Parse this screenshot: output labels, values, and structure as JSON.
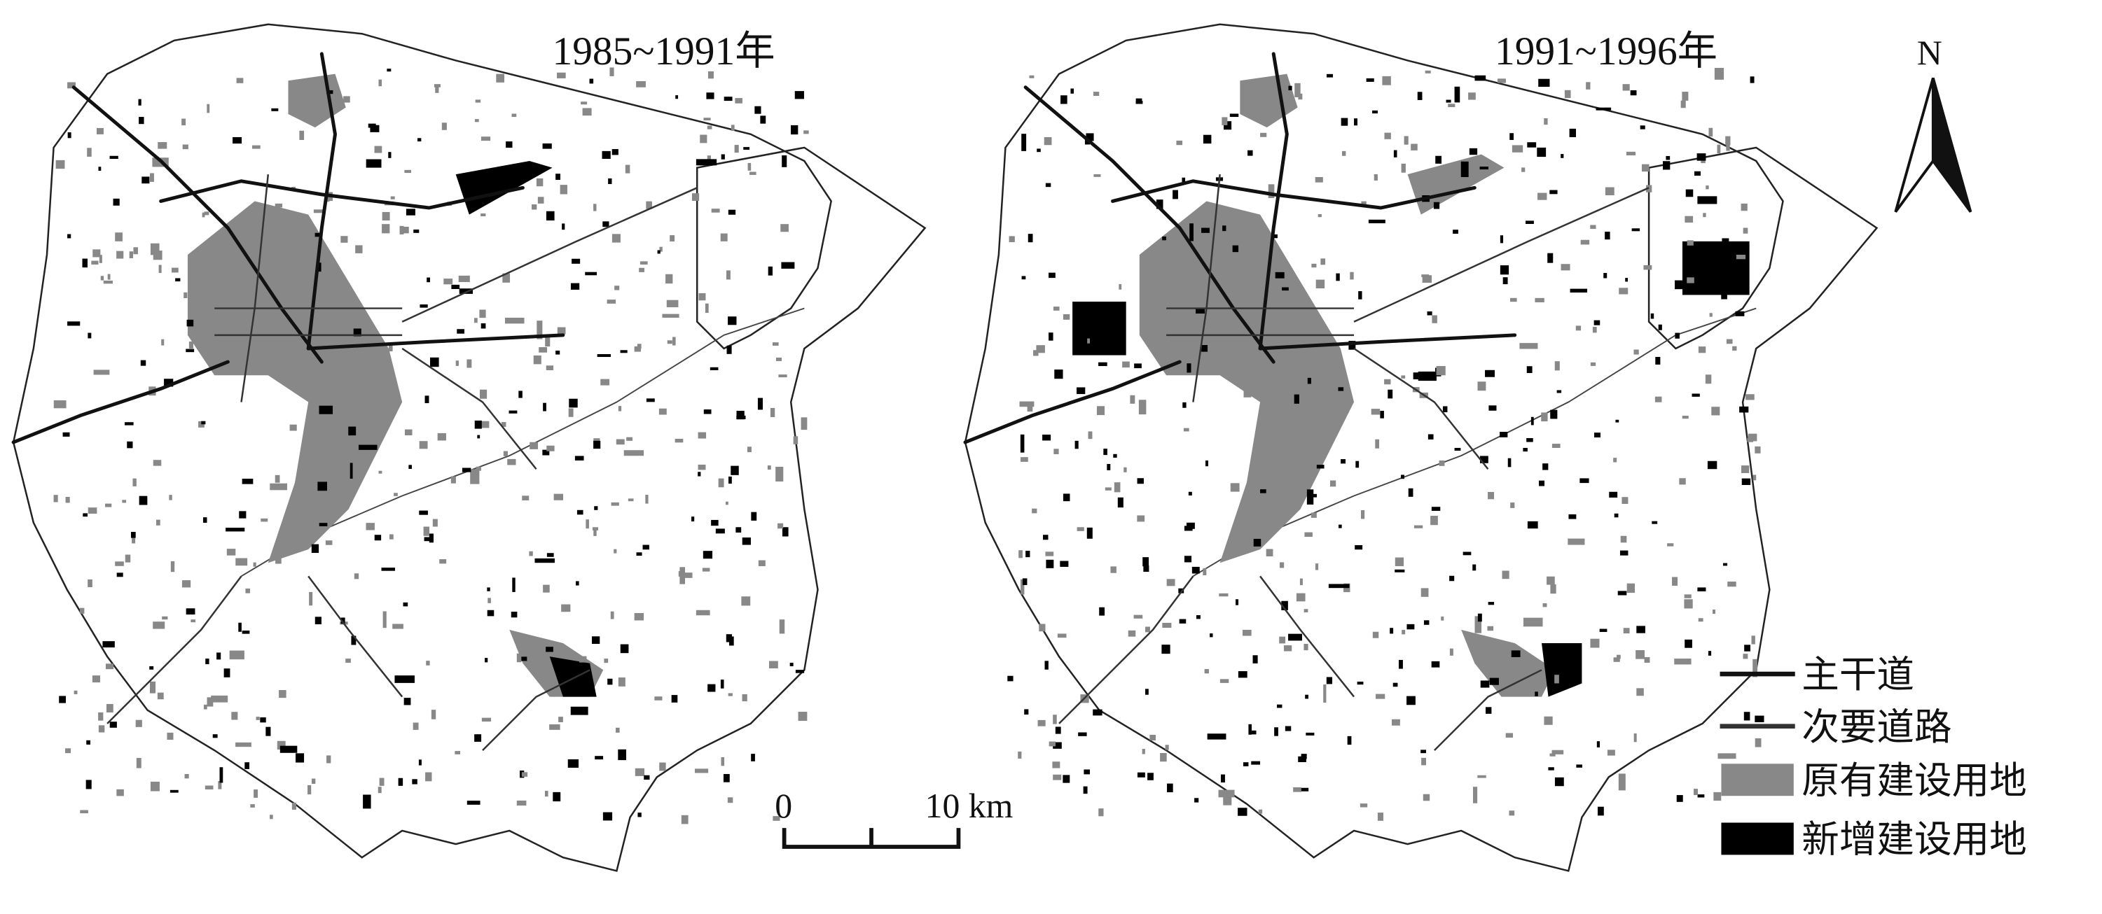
{
  "maps": [
    {
      "title": "1985~1991年"
    },
    {
      "title": "1991~1996年"
    }
  ],
  "north_arrow": {
    "label": "N"
  },
  "scale_bar": {
    "start_label": "0",
    "end_label": "10 km"
  },
  "legend": {
    "items": [
      {
        "label": "主干道",
        "symbol": "line",
        "color": "#111111"
      },
      {
        "label": "次要道路",
        "symbol": "line",
        "color": "#333333"
      },
      {
        "label": "原有建设用地",
        "symbol": "box",
        "color": "#888888"
      },
      {
        "label": "新增建设用地",
        "symbol": "box",
        "color": "#000000"
      }
    ]
  }
}
